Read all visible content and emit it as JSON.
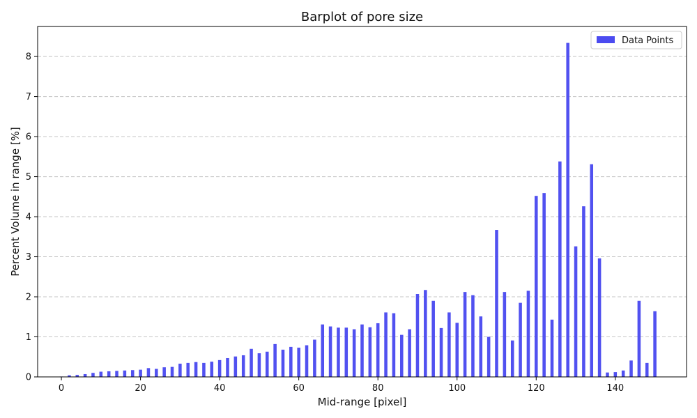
{
  "chart_data": {
    "type": "bar",
    "title": "Barplot of pore size",
    "xlabel": "Mid-range [pixel]",
    "ylabel": "Percent Volume in range [%]",
    "xlim": [
      -6,
      158
    ],
    "ylim": [
      0,
      8.75
    ],
    "xticks": [
      0,
      20,
      40,
      60,
      80,
      100,
      120,
      140
    ],
    "yticks": [
      0,
      1,
      2,
      3,
      4,
      5,
      6,
      7,
      8
    ],
    "grid": "y-dashed",
    "legend_position": "top-right",
    "bar_color": "#4b4bf0",
    "series": [
      {
        "name": "Data Points",
        "x": [
          0,
          2,
          4,
          6,
          8,
          10,
          12,
          14,
          16,
          18,
          20,
          22,
          24,
          26,
          28,
          30,
          32,
          34,
          36,
          38,
          40,
          42,
          44,
          46,
          48,
          50,
          52,
          54,
          56,
          58,
          60,
          62,
          64,
          66,
          68,
          70,
          72,
          74,
          76,
          78,
          80,
          82,
          84,
          86,
          88,
          90,
          92,
          94,
          96,
          98,
          100,
          102,
          104,
          106,
          108,
          110,
          112,
          114,
          116,
          118,
          120,
          122,
          124,
          126,
          128,
          130,
          132,
          134,
          136,
          138,
          140,
          142,
          144,
          146,
          148,
          150
        ],
        "values": [
          0.01,
          0.04,
          0.05,
          0.07,
          0.1,
          0.13,
          0.14,
          0.15,
          0.16,
          0.17,
          0.18,
          0.22,
          0.2,
          0.24,
          0.25,
          0.33,
          0.35,
          0.37,
          0.35,
          0.38,
          0.42,
          0.47,
          0.51,
          0.54,
          0.7,
          0.59,
          0.63,
          0.82,
          0.68,
          0.75,
          0.73,
          0.79,
          0.93,
          1.31,
          1.26,
          1.23,
          1.23,
          1.19,
          1.31,
          1.24,
          1.34,
          1.61,
          1.59,
          1.05,
          1.19,
          2.07,
          2.17,
          1.9,
          1.22,
          1.61,
          1.35,
          2.12,
          2.04,
          1.51,
          1.0,
          3.67,
          2.12,
          0.91,
          1.85,
          2.15,
          4.52,
          4.59,
          1.43,
          5.38,
          8.34,
          3.26,
          4.26,
          5.31,
          2.96,
          0.11,
          0.12,
          0.16,
          0.41,
          1.9,
          0.35,
          1.64
        ]
      }
    ]
  }
}
